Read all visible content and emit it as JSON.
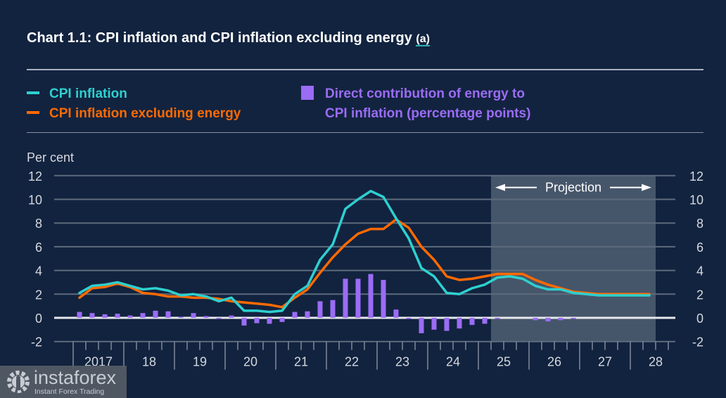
{
  "title": "Chart 1.1: CPI inflation and CPI inflation excluding energy",
  "title_note": "(a)",
  "legend": {
    "cpi": "CPI inflation",
    "core": "CPI inflation excluding energy",
    "energy_line1": "Direct contribution of energy to",
    "energy_line2": "CPI inflation (percentage points)"
  },
  "colors": {
    "cpi": "#2ed0cf",
    "core": "#ff6a00",
    "energy": "#9b6cf5",
    "projection_shade": "#46566a"
  },
  "watermark": {
    "name": "instaforex",
    "tagline": "Instant Forex Trading"
  },
  "chart_data": {
    "type": "line",
    "title": "Chart 1.1: CPI inflation and CPI inflation excluding energy (a)",
    "ylabel": "Per cent",
    "xlabel": "",
    "ylim": [
      -2,
      12
    ],
    "yticks": [
      -2,
      0,
      2,
      4,
      6,
      8,
      10,
      12
    ],
    "xlim_quarters": [
      "2017 Q1",
      "2028 Q4"
    ],
    "year_labels": [
      "2017",
      "18",
      "19",
      "20",
      "21",
      "22",
      "23",
      "24",
      "25",
      "26",
      "27",
      "28"
    ],
    "projection": {
      "label": "Projection",
      "start": "2025 Q2",
      "end": "2028 Q2"
    },
    "grid": true,
    "legend_position": "top",
    "x": [
      "2017Q1",
      "2017Q2",
      "2017Q3",
      "2017Q4",
      "2018Q1",
      "2018Q2",
      "2018Q3",
      "2018Q4",
      "2019Q1",
      "2019Q2",
      "2019Q3",
      "2019Q4",
      "2020Q1",
      "2020Q2",
      "2020Q3",
      "2020Q4",
      "2021Q1",
      "2021Q2",
      "2021Q3",
      "2021Q4",
      "2022Q1",
      "2022Q2",
      "2022Q3",
      "2022Q4",
      "2023Q1",
      "2023Q2",
      "2023Q3",
      "2023Q4",
      "2024Q1",
      "2024Q2",
      "2024Q3",
      "2024Q4",
      "2025Q1",
      "2025Q2",
      "2025Q3",
      "2025Q4",
      "2026Q1",
      "2026Q2",
      "2026Q3",
      "2026Q4",
      "2027Q1",
      "2027Q2",
      "2027Q3",
      "2027Q4",
      "2028Q1",
      "2028Q2"
    ],
    "series": [
      {
        "name": "CPI inflation",
        "kind": "line",
        "values": [
          2.1,
          2.7,
          2.8,
          3.0,
          2.7,
          2.4,
          2.5,
          2.3,
          1.9,
          2.0,
          1.8,
          1.4,
          1.7,
          0.6,
          0.6,
          0.5,
          0.6,
          2.0,
          2.7,
          4.9,
          6.2,
          9.2,
          10.0,
          10.7,
          10.2,
          8.4,
          6.7,
          4.2,
          3.5,
          2.1,
          2.0,
          2.5,
          2.8,
          3.4,
          3.5,
          3.3,
          2.7,
          2.4,
          2.4,
          2.1,
          2.0,
          1.9,
          1.9,
          1.9,
          1.9,
          1.9
        ]
      },
      {
        "name": "CPI inflation excluding energy",
        "kind": "line",
        "values": [
          1.7,
          2.5,
          2.6,
          2.9,
          2.6,
          2.1,
          2.0,
          1.8,
          1.8,
          1.7,
          1.7,
          1.6,
          1.4,
          1.3,
          1.2,
          1.1,
          0.9,
          1.7,
          2.4,
          3.8,
          5.1,
          6.2,
          7.1,
          7.5,
          7.5,
          8.3,
          7.6,
          6.0,
          4.9,
          3.5,
          3.2,
          3.3,
          3.5,
          3.7,
          3.7,
          3.7,
          3.2,
          2.8,
          2.5,
          2.2,
          2.1,
          2.0,
          2.0,
          2.0,
          2.0,
          2.0
        ]
      },
      {
        "name": "Direct contribution of energy to CPI inflation (percentage points)",
        "kind": "bar",
        "values": [
          0.5,
          0.4,
          0.3,
          0.35,
          0.2,
          0.4,
          0.6,
          0.55,
          0.1,
          0.4,
          0.15,
          -0.1,
          0.2,
          -0.65,
          -0.45,
          -0.5,
          -0.35,
          0.5,
          0.55,
          1.4,
          1.5,
          3.3,
          3.3,
          3.7,
          3.2,
          0.7,
          -0.1,
          -1.3,
          -1.0,
          -1.1,
          -0.9,
          -0.6,
          -0.5,
          -0.05,
          0.0,
          0.0,
          -0.2,
          -0.3,
          -0.2,
          -0.05,
          0.0,
          0.0,
          0.0,
          0.0,
          0.0,
          0.0
        ]
      }
    ]
  }
}
